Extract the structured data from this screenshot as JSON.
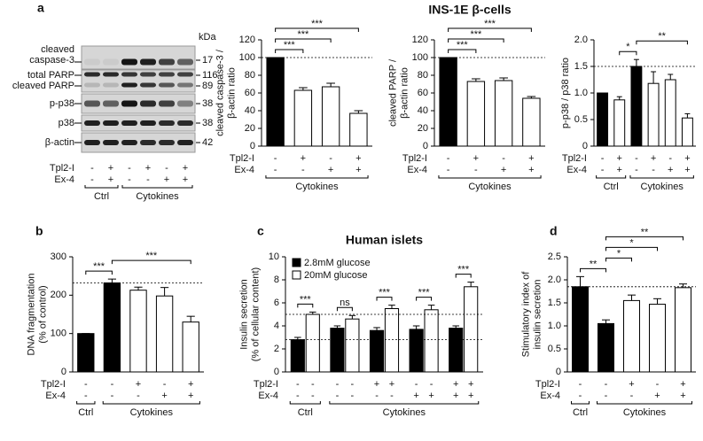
{
  "header": "INS-1E β-cells",
  "panel_labels": [
    "a",
    "b",
    "c",
    "d"
  ],
  "blot": {
    "labels": [
      [
        "cleaved",
        "caspase-3"
      ],
      [
        "total PARP"
      ],
      [
        "cleaved PARP"
      ],
      [
        "p-p38"
      ],
      [
        "p38"
      ],
      [
        "β-actin"
      ]
    ],
    "kda_label": "kDa",
    "kda": [
      "17",
      "116",
      "89",
      "38",
      "38",
      "42"
    ],
    "conditions": [
      {
        "name": "Tpl2-I",
        "signs": [
          "-",
          "+",
          "-",
          "+",
          "-",
          "+"
        ]
      },
      {
        "name": "Ex-4",
        "signs": [
          "-",
          "+",
          "-",
          "-",
          "+",
          "+"
        ]
      }
    ],
    "groups": [
      {
        "label": "Ctrl",
        "count": 2
      },
      {
        "label": "Cytokines",
        "count": 4
      }
    ]
  },
  "chart_data": [
    {
      "type": "bar",
      "ylabel": [
        "cleaved caspase-3 /",
        "β-actin ratio"
      ],
      "values": [
        100,
        63,
        67,
        37
      ],
      "errors": [
        0,
        3,
        4,
        3
      ],
      "bar_colors": [
        "#000000",
        "#ffffff",
        "#ffffff",
        "#ffffff"
      ],
      "ylim": [
        0,
        120
      ],
      "yticks": [
        0,
        20,
        40,
        60,
        80,
        100,
        120
      ],
      "reference_lines": [
        100
      ],
      "significance": [
        {
          "label": "***",
          "from": 0,
          "to": 1
        },
        {
          "label": "***",
          "from": 0,
          "to": 2
        },
        {
          "label": "***",
          "from": 0,
          "to": 3
        }
      ],
      "conditions": [
        {
          "name": "Tpl2-I",
          "signs": [
            "-",
            "+",
            "-",
            "+"
          ]
        },
        {
          "name": "Ex-4",
          "signs": [
            "-",
            "-",
            "+",
            "+"
          ]
        }
      ],
      "groups": [
        {
          "label": "Cytokines",
          "count": 4
        }
      ]
    },
    {
      "type": "bar",
      "ylabel": [
        "cleaved PARP /",
        "β-actin ratio"
      ],
      "values": [
        100,
        73,
        74,
        54
      ],
      "errors": [
        0,
        3,
        3,
        2
      ],
      "bar_colors": [
        "#000000",
        "#ffffff",
        "#ffffff",
        "#ffffff"
      ],
      "ylim": [
        0,
        120
      ],
      "yticks": [
        0,
        20,
        40,
        60,
        80,
        100,
        120
      ],
      "reference_lines": [
        100
      ],
      "significance": [
        {
          "label": "***",
          "from": 0,
          "to": 1
        },
        {
          "label": "***",
          "from": 0,
          "to": 2
        },
        {
          "label": "***",
          "from": 0,
          "to": 3
        }
      ],
      "conditions": [
        {
          "name": "Tpl2-I",
          "signs": [
            "-",
            "+",
            "-",
            "+"
          ]
        },
        {
          "name": "Ex-4",
          "signs": [
            "-",
            "-",
            "+",
            "+"
          ]
        }
      ],
      "groups": [
        {
          "label": "Cytokines",
          "count": 4
        }
      ]
    },
    {
      "type": "bar",
      "ylabel": [
        "p-p38 / p38 ratio"
      ],
      "values": [
        1.0,
        0.87,
        1.5,
        1.18,
        1.25,
        0.53
      ],
      "errors": [
        0,
        0.06,
        0.13,
        0.22,
        0.1,
        0.08
      ],
      "bar_colors": [
        "#000000",
        "#ffffff",
        "#000000",
        "#ffffff",
        "#ffffff",
        "#ffffff"
      ],
      "ylim": [
        0,
        2.0
      ],
      "yticks": [
        0,
        0.5,
        {
          "value": 1,
          "label": "1.0"
        },
        1.5,
        {
          "value": 2,
          "label": "2.0"
        }
      ],
      "reference_lines": [
        1.5
      ],
      "significance": [
        {
          "label": "*",
          "from": 1,
          "to": 2
        },
        {
          "label": "**",
          "from": 2,
          "to": 5
        }
      ],
      "conditions": [
        {
          "name": "Tpl2-I",
          "signs": [
            "-",
            "+",
            "-",
            "+",
            "-",
            "+"
          ]
        },
        {
          "name": "Ex-4",
          "signs": [
            "-",
            "+",
            "-",
            "-",
            "+",
            "+"
          ]
        }
      ],
      "groups": [
        {
          "label": "Ctrl",
          "count": 2
        },
        {
          "label": "Cytokines",
          "count": 4
        }
      ]
    },
    {
      "type": "bar",
      "ylabel": [
        "DNA fragmentation",
        "(% of control)"
      ],
      "values": [
        100,
        232,
        213,
        198,
        130
      ],
      "errors": [
        0,
        10,
        8,
        22,
        15
      ],
      "bar_colors": [
        "#000000",
        "#000000",
        "#ffffff",
        "#ffffff",
        "#ffffff"
      ],
      "ylim": [
        0,
        300
      ],
      "yticks": [
        0,
        100,
        200,
        300
      ],
      "reference_lines": [
        232
      ],
      "significance": [
        {
          "label": "***",
          "from": 0,
          "to": 1
        },
        {
          "label": "***",
          "from": 1,
          "to": 4
        }
      ],
      "conditions": [
        {
          "name": "Tpl2-I",
          "signs": [
            "-",
            "-",
            "+",
            "-",
            "+"
          ]
        },
        {
          "name": "Ex-4",
          "signs": [
            "-",
            "-",
            "-",
            "+",
            "+"
          ]
        }
      ],
      "groups": [
        {
          "label": "Ctrl",
          "count": 1
        },
        {
          "label": "Cytokines",
          "count": 4
        }
      ]
    },
    {
      "type": "bar",
      "title": "Human islets",
      "ylabel": [
        "Insulin secretion",
        "(% of cellular content)"
      ],
      "series": [
        {
          "name": "2.8mM glucose",
          "color": "#000000",
          "values": [
            2.8,
            3.8,
            3.6,
            3.7,
            3.8
          ],
          "errors": [
            0.2,
            0.2,
            0.25,
            0.3,
            0.2
          ]
        },
        {
          "name": "20mM glucose",
          "color": "#ffffff",
          "values": [
            5.0,
            4.6,
            5.5,
            5.4,
            7.4
          ],
          "errors": [
            0.2,
            0.3,
            0.3,
            0.4,
            0.4
          ]
        }
      ],
      "ylim": [
        0,
        10
      ],
      "yticks": [
        0,
        2,
        4,
        6,
        8,
        10
      ],
      "reference_lines": [
        5,
        2.8
      ],
      "legend": "upper left",
      "significance": [
        {
          "label": "***",
          "from": 0,
          "to": 1
        },
        {
          "label": "ns",
          "from": 2,
          "to": 3
        },
        {
          "label": "***",
          "from": 4,
          "to": 5
        },
        {
          "label": "***",
          "from": 6,
          "to": 7
        },
        {
          "label": "***",
          "from": 8,
          "to": 9
        }
      ],
      "conditions": [
        {
          "name": "Tpl2-I",
          "signs": [
            "-",
            "-",
            "-",
            "-",
            "+",
            "+",
            "-",
            "-",
            "+",
            "+"
          ]
        },
        {
          "name": "Ex-4",
          "signs": [
            "-",
            "-",
            "-",
            "-",
            "-",
            "-",
            "+",
            "+",
            "+",
            "+"
          ]
        }
      ],
      "groups": [
        {
          "label": "Ctrl",
          "count": 2
        },
        {
          "label": "Cytokines",
          "count": 8
        }
      ]
    },
    {
      "type": "bar",
      "ylabel": [
        "Stimulatory index of",
        "insulin secretion"
      ],
      "values": [
        1.85,
        1.05,
        1.55,
        1.47,
        1.83
      ],
      "errors": [
        0.22,
        0.08,
        0.12,
        0.12,
        0.08
      ],
      "bar_colors": [
        "#000000",
        "#000000",
        "#ffffff",
        "#ffffff",
        "#ffffff"
      ],
      "ylim": [
        0,
        2.5
      ],
      "yticks": [
        0,
        0.5,
        {
          "value": 1,
          "label": "1.0"
        },
        1.5,
        {
          "value": 2,
          "label": "2.0"
        },
        2.5
      ],
      "reference_lines": [
        1.85
      ],
      "significance": [
        {
          "label": "**",
          "from": 0,
          "to": 1
        },
        {
          "label": "*",
          "from": 1,
          "to": 2
        },
        {
          "label": "*",
          "from": 1,
          "to": 3
        },
        {
          "label": "**",
          "from": 1,
          "to": 4
        }
      ],
      "conditions": [
        {
          "name": "Tpl2-I",
          "signs": [
            "-",
            "-",
            "+",
            "-",
            "+"
          ]
        },
        {
          "name": "Ex-4",
          "signs": [
            "-",
            "-",
            "-",
            "+",
            "+"
          ]
        }
      ],
      "groups": [
        {
          "label": "Ctrl",
          "count": 1
        },
        {
          "label": "Cytokines",
          "count": 4
        }
      ]
    }
  ]
}
